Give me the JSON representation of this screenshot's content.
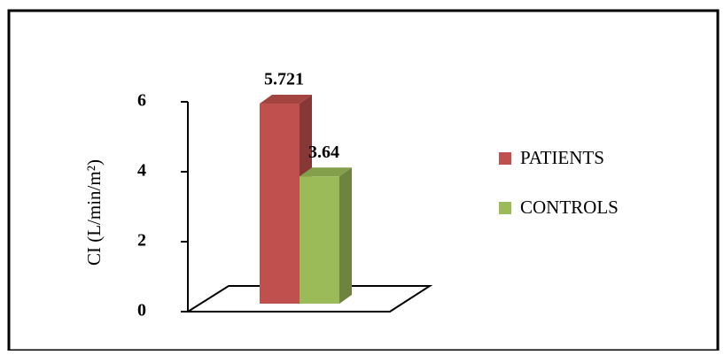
{
  "chart_data": {
    "type": "bar3d",
    "y_label": "CI (L/min/m²)",
    "categories": [
      null
    ],
    "series": [
      {
        "name": "PATIENTS",
        "color": "#c0504d",
        "values": [
          5.721
        ]
      },
      {
        "name": "CONTROLS",
        "color": "#9bbb59",
        "values": [
          3.64
        ]
      }
    ],
    "ylim": [
      0,
      6
    ],
    "yticks": [
      0,
      2,
      4,
      6
    ],
    "legend": "right"
  }
}
